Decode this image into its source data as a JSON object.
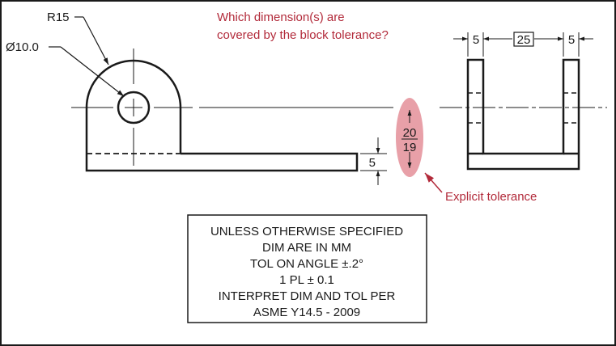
{
  "question": {
    "line1": "Which dimension(s) are",
    "line2": "covered by the block tolerance?"
  },
  "dimensions": {
    "radius": "R15",
    "diameter": "Ø10.0",
    "upper_limit": "20",
    "lower_limit": "19",
    "thickness": "5",
    "side_left": "5",
    "side_center": "25",
    "side_right": "5"
  },
  "callout": {
    "label": "Explicit tolerance"
  },
  "title_block": {
    "lines": [
      "UNLESS OTHERWISE SPECIFIED",
      "DIM ARE IN MM",
      "TOL ON ANGLE  ±.2°",
      "1 PL ± 0.1",
      "INTERPRET DIM AND TOL PER",
      "ASME Y14.5 - 2009"
    ]
  },
  "colors": {
    "annotation": "#b22a3a",
    "highlight": "#e8a0a8",
    "line": "#1a1a1a"
  }
}
